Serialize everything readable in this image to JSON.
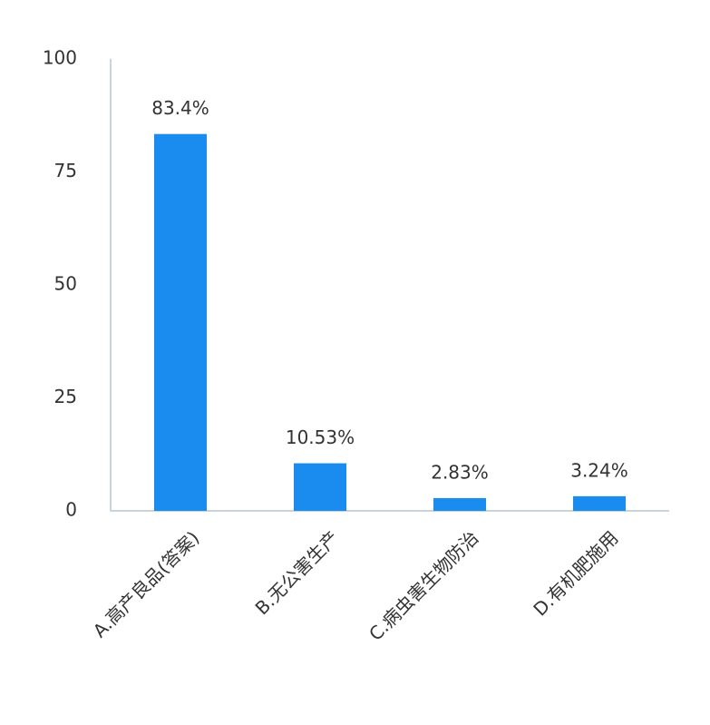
{
  "chart_data": {
    "type": "bar",
    "categories": [
      "A.高产良品(答案)",
      "B.无公害生产",
      "C.病虫害生物防治",
      "D.有机肥施用"
    ],
    "values": [
      83.4,
      10.53,
      2.83,
      3.24
    ],
    "value_labels": [
      "83.4%",
      "10.53%",
      "2.83%",
      "3.24%"
    ],
    "color": "#1a8cf0",
    "ylim": [
      0,
      100
    ],
    "yticks": [
      0,
      25,
      50,
      75,
      100
    ],
    "grid": false
  }
}
